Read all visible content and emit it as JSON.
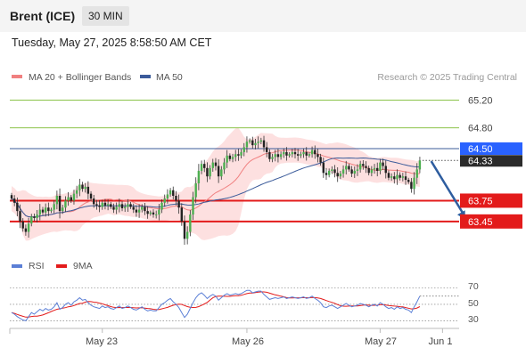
{
  "header": {
    "symbol": "Brent (ICE)",
    "timeframe": "30 MIN",
    "timestamp": "Tuesday, May 27, 2025 8:58:50 AM CET"
  },
  "colors": {
    "bullish": "#4caf50",
    "bearish": "#222222",
    "bollinger_fill": "#fde0e0",
    "ma20": "#f08080",
    "ma50": "#3b5b9a",
    "resistance": "#8bc34a",
    "current_price": "#2962ff",
    "support": "#e31b1b",
    "rsi": "#5b7fd6",
    "rsi_ma": "#e31b1b",
    "arrow": "#2e5d9f"
  },
  "chart_data": [
    {
      "type": "candlestick",
      "title": "",
      "watermark": "Research © 2025 Trading Central",
      "legend": [
        {
          "label": "MA 20 + Bollinger Bands",
          "color": "#f08080"
        },
        {
          "label": "MA 50",
          "color": "#3b5b9a"
        }
      ],
      "legend_position": "top-left",
      "ylim": [
        63.05,
        65.36
      ],
      "x_ticks": [
        {
          "label": "May 23",
          "index": 32
        },
        {
          "label": "May 26",
          "index": 83
        },
        {
          "label": "May 27",
          "index": 130
        },
        {
          "label": "Jun 1",
          "index": 152
        }
      ],
      "price_levels": [
        {
          "value": 65.2,
          "label": "65.20",
          "kind": "resistance"
        },
        {
          "value": 64.8,
          "label": "64.80",
          "kind": "resistance"
        },
        {
          "value": 64.5,
          "label": "64.50",
          "kind": "current"
        },
        {
          "value": 64.33,
          "label": "64.33",
          "kind": "last"
        },
        {
          "value": 63.75,
          "label": "63.75",
          "kind": "support"
        },
        {
          "value": 63.45,
          "label": "63.45",
          "kind": "support"
        }
      ],
      "forecast_arrow": {
        "from_index": 148,
        "from_value": 64.32,
        "to_index": 160,
        "to_value": 63.48
      },
      "close": [
        63.78,
        63.72,
        63.6,
        63.45,
        63.35,
        63.3,
        63.42,
        63.52,
        63.5,
        63.55,
        63.62,
        63.58,
        63.65,
        63.6,
        63.62,
        63.7,
        63.82,
        63.6,
        63.65,
        63.75,
        63.8,
        63.75,
        63.85,
        63.9,
        63.98,
        63.92,
        63.95,
        63.85,
        63.78,
        63.7,
        63.68,
        63.66,
        63.72,
        63.68,
        63.7,
        63.66,
        63.62,
        63.66,
        63.7,
        63.64,
        63.66,
        63.7,
        63.66,
        63.62,
        63.58,
        63.62,
        63.66,
        63.6,
        63.56,
        63.58,
        63.55,
        63.55,
        63.62,
        63.72,
        63.78,
        63.84,
        63.9,
        63.82,
        63.75,
        63.65,
        63.45,
        63.2,
        63.3,
        63.55,
        63.8,
        64.0,
        64.18,
        64.28,
        64.22,
        64.1,
        64.22,
        64.3,
        64.25,
        64.1,
        64.2,
        64.3,
        64.4,
        64.35,
        64.38,
        64.42,
        64.4,
        64.45,
        64.52,
        64.6,
        64.62,
        64.55,
        64.58,
        64.6,
        64.62,
        64.52,
        64.45,
        64.35,
        64.38,
        64.42,
        64.38,
        64.42,
        64.45,
        64.4,
        64.42,
        64.45,
        64.42,
        64.4,
        64.42,
        64.45,
        64.4,
        64.42,
        64.48,
        64.42,
        64.38,
        64.3,
        64.15,
        64.12,
        64.18,
        64.2,
        64.15,
        64.1,
        64.14,
        64.2,
        64.25,
        64.2,
        64.14,
        64.18,
        64.2,
        64.28,
        64.25,
        64.22,
        64.15,
        64.2,
        64.22,
        64.18,
        64.3,
        64.25,
        64.15,
        64.08,
        64.1,
        64.06,
        64.12,
        64.08,
        64.1,
        64.05,
        64.02,
        63.92,
        64.08,
        64.2,
        64.33
      ]
    },
    {
      "type": "line",
      "title": "",
      "legend": [
        {
          "label": "RSI",
          "color": "#5b7fd6"
        },
        {
          "label": "9MA",
          "color": "#e31b1b"
        }
      ],
      "legend_position": "top-left",
      "ylim": [
        24,
        78
      ],
      "y_ticks": [
        70,
        50,
        30
      ],
      "rsi": [
        40,
        38,
        35,
        33,
        31,
        30,
        35,
        40,
        38,
        41,
        44,
        42,
        45,
        43,
        44,
        47,
        52,
        44,
        46,
        50,
        52,
        49,
        53,
        55,
        58,
        55,
        56,
        52,
        49,
        47,
        46,
        45,
        48,
        46,
        47,
        45,
        44,
        46,
        48,
        45,
        46,
        48,
        46,
        44,
        43,
        45,
        47,
        44,
        42,
        43,
        42,
        42,
        46,
        50,
        52,
        55,
        57,
        53,
        50,
        46,
        40,
        34,
        38,
        45,
        52,
        58,
        62,
        64,
        61,
        57,
        60,
        62,
        60,
        55,
        58,
        61,
        63,
        61,
        62,
        63,
        62,
        63,
        65,
        67,
        67,
        64,
        65,
        66,
        66,
        62,
        59,
        56,
        57,
        58,
        57,
        58,
        59,
        57,
        58,
        59,
        58,
        57,
        58,
        59,
        57,
        58,
        60,
        57,
        55,
        52,
        47,
        46,
        48,
        49,
        47,
        45,
        47,
        49,
        51,
        49,
        47,
        48,
        49,
        51,
        50,
        49,
        47,
        49,
        50,
        48,
        52,
        50,
        47,
        45,
        46,
        44,
        47,
        45,
        46,
        44,
        43,
        40,
        47,
        53,
        60
      ]
    }
  ],
  "rsi_panel": {
    "labels": [
      "70",
      "50",
      "30"
    ]
  },
  "x_axis": {
    "labels": [
      "May 23",
      "May 26",
      "May 27",
      "Jun 1"
    ]
  }
}
